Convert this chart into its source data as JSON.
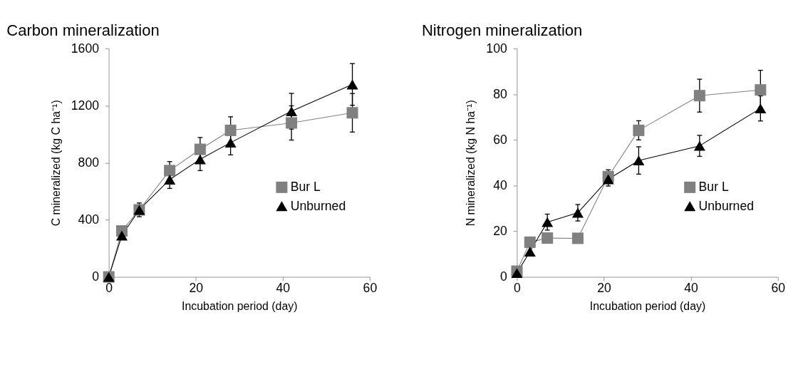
{
  "chart_data": [
    {
      "type": "line",
      "title": "Carbon mineralization",
      "xlabel": "Incubation period (day)",
      "ylabel": "C mineralized  (kg C ha⁻¹)",
      "x": [
        0,
        3,
        7,
        14,
        21,
        28,
        42,
        56
      ],
      "xlim": [
        0,
        60
      ],
      "xticks": [
        0,
        20,
        40,
        60
      ],
      "ylim": [
        0,
        1600
      ],
      "yticks": [
        0,
        400,
        800,
        1200,
        1600
      ],
      "grid": false,
      "legend": "right",
      "series": [
        {
          "name": "Bur L",
          "color": "#808080",
          "marker": "square",
          "values": [
            0,
            322,
            470,
            745,
            894,
            1027,
            1079,
            1150
          ],
          "errors": [
            null,
            null,
            48,
            63,
            83,
            95,
            120,
            135
          ]
        },
        {
          "name": "Unburned",
          "color": "#000000",
          "marker": "triangle",
          "values": [
            0,
            290,
            470,
            682,
            824,
            941,
            1161,
            1349
          ],
          "errors": [
            null,
            null,
            null,
            62,
            79,
            86,
            125,
            146
          ]
        }
      ]
    },
    {
      "type": "line",
      "title": "Nitrogen mineralization",
      "xlabel": "Incubation period (day)",
      "ylabel": "N mineralized  (kg N ha⁻¹)",
      "x": [
        0,
        3,
        7,
        14,
        21,
        28,
        42,
        56
      ],
      "xlim": [
        0,
        60
      ],
      "xticks": [
        0,
        20,
        40,
        60
      ],
      "ylim": [
        0,
        100
      ],
      "yticks": [
        0,
        20,
        40,
        60,
        80,
        100
      ],
      "grid": false,
      "legend": "right",
      "series": [
        {
          "name": "Bur L",
          "color": "#808080",
          "marker": "square",
          "values": [
            2.5,
            15.2,
            17,
            16.9,
            43.9,
            64.2,
            79.4,
            81.9
          ],
          "errors": [
            null,
            null,
            null,
            null,
            3,
            4.2,
            7.2,
            8.6
          ]
        },
        {
          "name": "Unburned",
          "color": "#000000",
          "marker": "triangle",
          "values": [
            1.7,
            11.1,
            24,
            28.1,
            42.8,
            51,
            57.4,
            73.8
          ],
          "errors": [
            null,
            null,
            3.5,
            3.6,
            3,
            6,
            4.6,
            5.5
          ]
        }
      ]
    }
  ]
}
